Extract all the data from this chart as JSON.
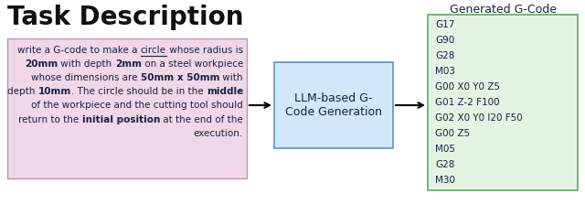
{
  "title": "Task Description",
  "box_bg_color": "#f0d8e8",
  "box_border_color": "#b898a8",
  "llm_box_bg": "#d0e8f8",
  "llm_box_border": "#6090c0",
  "llm_box_text": "LLM-based G-\nCode Generation",
  "gcode_box_bg": "#e4f4e4",
  "gcode_box_border": "#60a860",
  "gcode_title": "Generated G-Code",
  "gcode_lines": [
    "G17",
    "G90",
    "G28",
    "M03",
    "G00 X0 Y0 Z5",
    "G01 Z-2 F100",
    "G02 X0 Y0 I20 F50",
    "G00 Z5",
    "M05",
    "G28",
    "M30"
  ],
  "bg_color": "#ffffff",
  "text_color": "#1a2040",
  "task_lines": [
    [
      [
        "write a G-code to make a ",
        "normal",
        false
      ],
      [
        "circle",
        "normal",
        true
      ],
      [
        " whose radius is",
        "normal",
        false
      ]
    ],
    [
      [
        "20mm",
        "bold",
        false
      ],
      [
        " with depth ",
        "normal",
        false
      ],
      [
        "2mm",
        "bold",
        false
      ],
      [
        " on a steel workpiece",
        "normal",
        false
      ]
    ],
    [
      [
        "whose dimensions are ",
        "normal",
        false
      ],
      [
        "50mm x 50mm",
        "bold",
        false
      ],
      [
        " with",
        "normal",
        false
      ]
    ],
    [
      [
        "depth ",
        "normal",
        false
      ],
      [
        "10mm",
        "bold",
        false
      ],
      [
        ". The circle should be in the ",
        "normal",
        false
      ],
      [
        "middle",
        "bold",
        false
      ]
    ],
    [
      [
        "of the workpiece and the cutting tool should",
        "normal",
        false
      ]
    ],
    [
      [
        "return to the ",
        "normal",
        false
      ],
      [
        "initial position",
        "bold",
        false
      ],
      [
        " at the end of the",
        "normal",
        false
      ]
    ],
    [
      [
        "execution.",
        "normal",
        false
      ]
    ]
  ],
  "font_size_task": 7.5,
  "font_size_title": 20,
  "font_size_llm": 9.0,
  "font_size_gcode": 7.5,
  "font_size_gcode_title": 9.0
}
